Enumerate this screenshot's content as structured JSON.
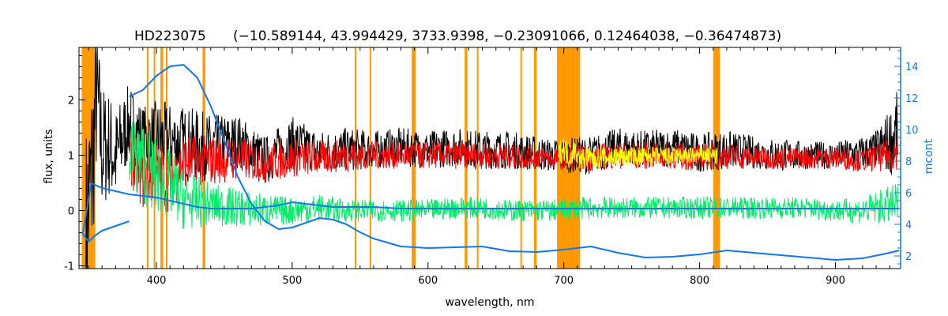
{
  "chart_data": {
    "type": "line",
    "title": "HD223075",
    "subtitle": "(−10.589144, 43.994429, 3733.9398, −0.23091066, 0.12464038, −0.36474873)",
    "xlabel": "wavelength, nm",
    "ylabel_left": "flux, units",
    "ylabel_right": "mcont",
    "xlim": [
      343,
      948
    ],
    "ylim_left": [
      -1.05,
      2.95
    ],
    "ylim_right": [
      1.2,
      15.2
    ],
    "x_ticks": [
      400,
      500,
      600,
      700,
      800,
      900
    ],
    "y_ticks_left": [
      -1,
      0,
      1,
      2
    ],
    "y_ticks_right": [
      2,
      4,
      6,
      8,
      10,
      12,
      14
    ],
    "masked_regions": [
      [
        345,
        355
      ],
      [
        393,
        394
      ],
      [
        398,
        399
      ],
      [
        403,
        405
      ],
      [
        407,
        408
      ],
      [
        434,
        436
      ],
      [
        546,
        547
      ],
      [
        557,
        558
      ],
      [
        588,
        591
      ],
      [
        627,
        629
      ],
      [
        636,
        637
      ],
      [
        668,
        669
      ],
      [
        678,
        680
      ],
      [
        695,
        712
      ],
      [
        810,
        815
      ]
    ],
    "colors": {
      "masked": "#FF9900",
      "observed": "#000000",
      "model": "#FF0000",
      "residual": "#00EE66",
      "masked_model": "#FFFF00",
      "continuum": "#1177EE",
      "right_axis": "#1177EE"
    },
    "series": [
      {
        "role": "observed flux",
        "color": "#000000",
        "x": [
          348,
          352,
          356,
          360,
          365,
          370,
          375,
          380,
          390,
          400,
          420,
          440,
          460,
          480,
          500,
          520,
          540,
          560,
          580,
          600,
          620,
          640,
          660,
          690,
          720,
          740,
          760,
          780,
          800,
          820,
          840,
          860,
          880,
          900,
          920,
          930,
          940,
          946
        ],
        "y": [
          -0.3,
          0.5,
          2.1,
          1.1,
          1.2,
          0.95,
          1.3,
          1.6,
          1.3,
          1.3,
          1.2,
          1.15,
          1.25,
          0.9,
          1.25,
          1.05,
          1.1,
          1.1,
          1.15,
          1.1,
          1.15,
          1.1,
          1.1,
          1.0,
          1.0,
          1.15,
          1.1,
          1.15,
          1.05,
          1.1,
          1.05,
          1.0,
          1.0,
          1.0,
          1.05,
          1.1,
          1.25,
          1.4
        ],
        "noise": [
          1.8,
          2.0,
          1.4,
          1.2,
          1.0,
          0.9,
          0.8,
          0.7,
          0.6,
          0.7,
          0.7,
          0.6,
          0.5,
          0.45,
          0.45,
          0.4,
          0.4,
          0.35,
          0.35,
          0.35,
          0.35,
          0.35,
          0.35,
          0.3,
          0.35,
          0.35,
          0.35,
          0.35,
          0.35,
          0.35,
          0.3,
          0.3,
          0.25,
          0.25,
          0.3,
          0.35,
          0.6,
          0.8
        ]
      },
      {
        "role": "model fit",
        "color": "#FF0000",
        "x": [
          380,
          390,
          400,
          410,
          420,
          440,
          460,
          480,
          500,
          520,
          540,
          560,
          580,
          600,
          620,
          640,
          660,
          690,
          720,
          740,
          760,
          780,
          800,
          820,
          840,
          860,
          880,
          900,
          920,
          930,
          940,
          946
        ],
        "y": [
          1.0,
          0.6,
          0.7,
          0.5,
          0.9,
          0.9,
          0.95,
          0.85,
          0.95,
          0.95,
          1.0,
          1.0,
          1.0,
          1.0,
          1.0,
          1.0,
          1.0,
          0.95,
          0.95,
          1.0,
          1.0,
          1.0,
          0.95,
          1.0,
          0.95,
          0.95,
          0.95,
          0.95,
          0.9,
          0.95,
          1.0,
          1.1
        ],
        "noise": [
          0.5,
          0.6,
          0.6,
          0.55,
          0.5,
          0.45,
          0.4,
          0.35,
          0.35,
          0.3,
          0.3,
          0.25,
          0.25,
          0.25,
          0.25,
          0.25,
          0.25,
          0.2,
          0.25,
          0.25,
          0.25,
          0.25,
          0.25,
          0.25,
          0.2,
          0.2,
          0.2,
          0.2,
          0.2,
          0.25,
          0.3,
          0.35
        ]
      },
      {
        "role": "residual",
        "color": "#00EE66",
        "x": [
          380,
          390,
          400,
          410,
          420,
          440,
          460,
          480,
          500,
          520,
          540,
          560,
          580,
          600,
          620,
          640,
          660,
          690,
          720,
          740,
          760,
          780,
          800,
          820,
          840,
          860,
          880,
          900,
          920,
          930,
          940,
          946
        ],
        "y": [
          1.0,
          0.9,
          0.6,
          0.5,
          0.2,
          0.1,
          0.05,
          0.0,
          0.0,
          0.05,
          0.0,
          0.0,
          0.0,
          0.0,
          0.05,
          0.05,
          0.0,
          0.0,
          0.05,
          0.05,
          0.05,
          0.05,
          0.05,
          0.05,
          0.05,
          0.05,
          0.05,
          0.0,
          0.0,
          0.05,
          0.1,
          0.1
        ],
        "noise": [
          0.7,
          0.8,
          0.7,
          0.6,
          0.55,
          0.4,
          0.35,
          0.3,
          0.25,
          0.25,
          0.2,
          0.2,
          0.2,
          0.2,
          0.2,
          0.2,
          0.2,
          0.2,
          0.2,
          0.2,
          0.2,
          0.2,
          0.2,
          0.2,
          0.2,
          0.2,
          0.2,
          0.2,
          0.25,
          0.3,
          0.35,
          0.4
        ]
      },
      {
        "role": "masked model",
        "color": "#FFFF00",
        "x": [
          696,
          700,
          704,
          708,
          711,
          811,
          812,
          813
        ],
        "y": [
          1.0,
          1.15,
          0.95,
          1.1,
          0.95,
          1.0,
          0.95,
          1.0
        ],
        "noise": [
          0.2,
          0.25,
          0.2,
          0.2,
          0.2,
          0.15,
          0.15,
          0.15
        ]
      },
      {
        "role": "continuum (mcont)",
        "color": "#1177EE",
        "axis": "right",
        "x": [
          346,
          352,
          360,
          370,
          380,
          390,
          400,
          410,
          420,
          430,
          440,
          450,
          460,
          470,
          480,
          490,
          500,
          510,
          520,
          530,
          540,
          550,
          560,
          580,
          600,
          620,
          640,
          660,
          680,
          700,
          720,
          740,
          760,
          780,
          800,
          820,
          840,
          860,
          880,
          900,
          920,
          940,
          947
        ],
        "y": [
          3.5,
          6.6,
          6.3,
          6.1,
          5.9,
          5.8,
          5.7,
          5.5,
          5.3,
          5.1,
          5.0,
          5.0,
          5.0,
          5.0,
          5.1,
          5.2,
          5.4,
          5.3,
          5.2,
          5.1,
          5.1,
          5.1,
          5.1,
          5.0,
          5.0,
          5.0,
          5.0,
          5.0,
          5.0,
          5.0,
          5.0,
          5.0,
          5.0,
          5.0,
          5.0,
          5.0,
          5.0,
          5.0,
          5.0,
          5.0,
          5.0,
          5.0,
          5.0
        ]
      },
      {
        "role": "continuum (mcont) upper",
        "color": "#1177EE",
        "axis": "right",
        "x": [
          380,
          390,
          400,
          410,
          420,
          430,
          440,
          450,
          460,
          470,
          480,
          490,
          500,
          510,
          520,
          530,
          540,
          550,
          560,
          580,
          600,
          620,
          640,
          660,
          680,
          700,
          720,
          740,
          760,
          780,
          800,
          820,
          840,
          860,
          880,
          900,
          920,
          940,
          947
        ],
        "y": [
          12.1,
          12.5,
          13.4,
          14.0,
          14.1,
          13.3,
          11.5,
          9.3,
          7.0,
          5.3,
          4.2,
          3.7,
          3.8,
          4.1,
          4.4,
          4.3,
          4.0,
          3.5,
          3.1,
          2.6,
          2.5,
          2.55,
          2.6,
          2.3,
          2.25,
          2.4,
          2.6,
          2.2,
          1.9,
          1.95,
          2.1,
          2.35,
          2.2,
          2.05,
          1.9,
          1.75,
          1.85,
          2.2,
          2.35
        ]
      },
      {
        "role": "continuum (mcont) lower",
        "color": "#1177EE",
        "axis": "right",
        "x": [
          345,
          350,
          355,
          360,
          370,
          380
        ],
        "y": [
          3.5,
          2.9,
          3.3,
          3.6,
          3.9,
          4.2
        ]
      }
    ]
  }
}
